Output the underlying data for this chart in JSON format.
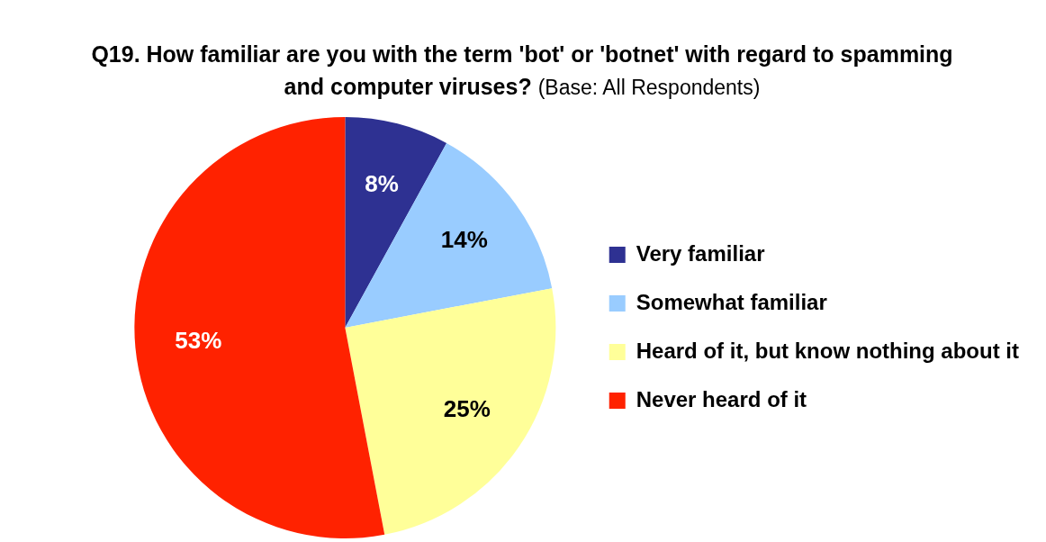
{
  "chart_data": {
    "type": "pie",
    "title": "Q19. How familiar are you with the term 'bot' or 'botnet' with regard to spamming and computer viruses?",
    "subtitle": "(Base: All Respondents)",
    "categories": [
      "Very familiar",
      "Somewhat familiar",
      "Heard of it, but know nothing about it",
      "Never heard of it"
    ],
    "values": [
      8,
      14,
      25,
      53
    ],
    "colors": [
      "#2e3192",
      "#99ccff",
      "#ffff99",
      "#ff2200"
    ],
    "value_labels": [
      "8%",
      "14%",
      "25%",
      "53%"
    ],
    "legend": "right"
  }
}
